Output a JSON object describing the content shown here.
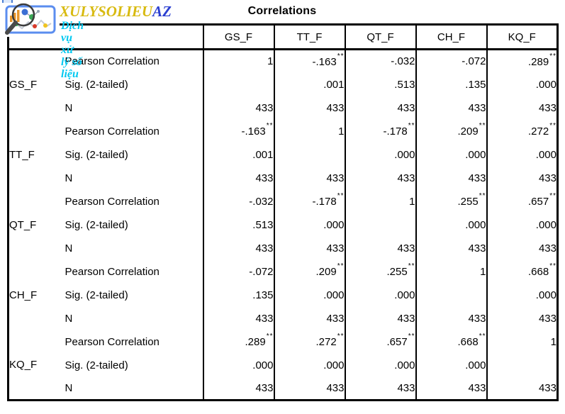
{
  "watermark": {
    "brand_main": "XULYSOLIEU",
    "brand_suffix": "AZ",
    "tagline": "Dịch vụ xử lý số liệu",
    "brand_main_color": "#d8ba10",
    "brand_suffix_color": "#2b3fd0",
    "tagline_color": "#00c8f0",
    "icon": "chart-magnifier-logo"
  },
  "table": {
    "title": "Correlations",
    "columns": [
      "GS_F",
      "TT_F",
      "QT_F",
      "CH_F",
      "KQ_F"
    ],
    "stat_labels": {
      "pearson": "Pearson Correlation",
      "sig": "Sig. (2-tailed)",
      "n": "N"
    },
    "groups": [
      {
        "variable": "GS_F",
        "pearson": [
          "1",
          "-.163**",
          "-.032",
          "-.072",
          ".289**"
        ],
        "sig": [
          "",
          ".001",
          ".513",
          ".135",
          ".000"
        ],
        "n": [
          "433",
          "433",
          "433",
          "433",
          "433"
        ]
      },
      {
        "variable": "TT_F",
        "pearson": [
          "-.163**",
          "1",
          "-.178**",
          ".209**",
          ".272**"
        ],
        "sig": [
          ".001",
          "",
          ".000",
          ".000",
          ".000"
        ],
        "n": [
          "433",
          "433",
          "433",
          "433",
          "433"
        ]
      },
      {
        "variable": "QT_F",
        "pearson": [
          "-.032",
          "-.178**",
          "1",
          ".255**",
          ".657**"
        ],
        "sig": [
          ".513",
          ".000",
          "",
          ".000",
          ".000"
        ],
        "n": [
          "433",
          "433",
          "433",
          "433",
          "433"
        ]
      },
      {
        "variable": "CH_F",
        "pearson": [
          "-.072",
          ".209**",
          ".255**",
          "1",
          ".668**"
        ],
        "sig": [
          ".135",
          ".000",
          ".000",
          "",
          ".000"
        ],
        "n": [
          "433",
          "433",
          "433",
          "433",
          "433"
        ]
      },
      {
        "variable": "KQ_F",
        "pearson": [
          ".289**",
          ".272**",
          ".657**",
          ".668**",
          "1"
        ],
        "sig": [
          ".000",
          ".000",
          ".000",
          ".000",
          ""
        ],
        "n": [
          "433",
          "433",
          "433",
          "433",
          "433"
        ]
      }
    ]
  }
}
